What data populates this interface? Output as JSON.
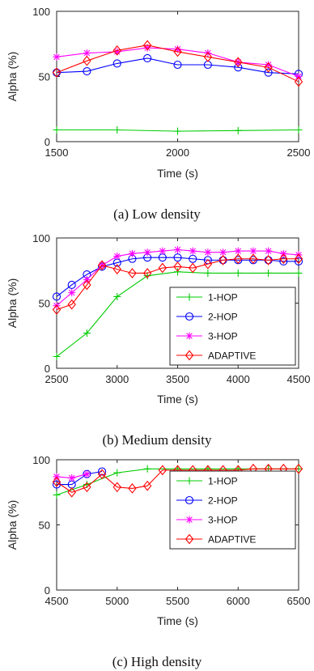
{
  "chart_data": [
    {
      "type": "line",
      "caption": "(a) Low density",
      "xlabel": "Time (s)",
      "ylabel": "Alpha (%)",
      "xlim": [
        1500,
        2500
      ],
      "ylim": [
        0,
        100
      ],
      "xticks": [
        1500,
        2000,
        2500
      ],
      "yticks": [
        0,
        50,
        100
      ],
      "legend": false,
      "series": [
        {
          "color": "#00cc00",
          "marker": "plus",
          "points": [
            [
              1500,
              9
            ],
            [
              1750,
              9
            ],
            [
              2000,
              8
            ],
            [
              2250,
              8.5
            ],
            [
              2500,
              9
            ]
          ]
        },
        {
          "color": "#0000ff",
          "marker": "circle",
          "points": [
            [
              1500,
              53
            ],
            [
              1625,
              54
            ],
            [
              1750,
              60
            ],
            [
              1875,
              64
            ],
            [
              2000,
              59
            ],
            [
              2125,
              59
            ],
            [
              2250,
              57
            ],
            [
              2375,
              53
            ],
            [
              2500,
              52
            ]
          ]
        },
        {
          "color": "#ff00ff",
          "marker": "star",
          "points": [
            [
              1500,
              65
            ],
            [
              1625,
              68
            ],
            [
              1750,
              69
            ],
            [
              1875,
              72
            ],
            [
              2000,
              71
            ],
            [
              2125,
              68
            ],
            [
              2250,
              61
            ],
            [
              2375,
              59
            ],
            [
              2500,
              50
            ]
          ]
        },
        {
          "color": "#ff0000",
          "marker": "diamond",
          "points": [
            [
              1500,
              53
            ],
            [
              1625,
              62
            ],
            [
              1750,
              70
            ],
            [
              1875,
              74
            ],
            [
              2000,
              69
            ],
            [
              2125,
              65
            ],
            [
              2250,
              61
            ],
            [
              2375,
              57
            ],
            [
              2500,
              46
            ]
          ]
        }
      ]
    },
    {
      "type": "line",
      "caption": "(b) Medium density",
      "xlabel": "Time (s)",
      "ylabel": "Alpha (%)",
      "xlim": [
        2500,
        4500
      ],
      "ylim": [
        0,
        100
      ],
      "xticks": [
        2500,
        3000,
        3500,
        4000,
        4500
      ],
      "yticks": [
        0,
        50,
        100
      ],
      "legend": true,
      "legend_position": "bottom-right",
      "series": [
        {
          "name": "1-HOP",
          "color": "#00cc00",
          "marker": "plus",
          "points": [
            [
              2500,
              9
            ],
            [
              2750,
              27
            ],
            [
              3000,
              55
            ],
            [
              3250,
              71
            ],
            [
              3500,
              74
            ],
            [
              3750,
              73
            ],
            [
              4000,
              73
            ],
            [
              4250,
              73
            ],
            [
              4500,
              73
            ]
          ]
        },
        {
          "name": "2-HOP",
          "color": "#0000ff",
          "marker": "circle",
          "points": [
            [
              2500,
              55
            ],
            [
              2625,
              64
            ],
            [
              2750,
              72
            ],
            [
              2875,
              78
            ],
            [
              3000,
              81
            ],
            [
              3125,
              84
            ],
            [
              3250,
              85
            ],
            [
              3375,
              85
            ],
            [
              3500,
              85
            ],
            [
              3625,
              84
            ],
            [
              3750,
              83
            ],
            [
              3875,
              83
            ],
            [
              4000,
              83
            ],
            [
              4125,
              83
            ],
            [
              4250,
              83
            ],
            [
              4375,
              82
            ],
            [
              4500,
              82
            ]
          ]
        },
        {
          "name": "3-HOP",
          "color": "#ff00ff",
          "marker": "star",
          "points": [
            [
              2500,
              48
            ],
            [
              2625,
              58
            ],
            [
              2750,
              68
            ],
            [
              2875,
              79
            ],
            [
              3000,
              86
            ],
            [
              3125,
              88
            ],
            [
              3250,
              89
            ],
            [
              3375,
              90
            ],
            [
              3500,
              91
            ],
            [
              3625,
              90
            ],
            [
              3750,
              89
            ],
            [
              3875,
              89
            ],
            [
              4000,
              90
            ],
            [
              4125,
              90
            ],
            [
              4250,
              90
            ],
            [
              4375,
              88
            ],
            [
              4500,
              87
            ]
          ]
        },
        {
          "name": "ADAPTIVE",
          "color": "#ff0000",
          "marker": "diamond",
          "points": [
            [
              2500,
              45
            ],
            [
              2625,
              49
            ],
            [
              2750,
              64
            ],
            [
              2875,
              79
            ],
            [
              3000,
              76
            ],
            [
              3125,
              73
            ],
            [
              3250,
              73
            ],
            [
              3375,
              77
            ],
            [
              3500,
              78
            ],
            [
              3625,
              77
            ],
            [
              3750,
              80
            ],
            [
              3875,
              83
            ],
            [
              4000,
              84
            ],
            [
              4125,
              84
            ],
            [
              4250,
              83
            ],
            [
              4375,
              84
            ],
            [
              4500,
              84
            ]
          ]
        }
      ]
    },
    {
      "type": "line",
      "caption": "(c) High density",
      "xlabel": "Time (s)",
      "ylabel": "Alpha (%)",
      "xlim": [
        4500,
        6500
      ],
      "ylim": [
        0,
        100
      ],
      "xticks": [
        4500,
        5000,
        5500,
        6000,
        6500
      ],
      "yticks": [
        0,
        50,
        100
      ],
      "legend": true,
      "legend_position": "center-right",
      "series": [
        {
          "name": "1-HOP",
          "color": "#00cc00",
          "marker": "plus",
          "points": [
            [
              4500,
              73
            ],
            [
              4750,
              81
            ],
            [
              5000,
              90
            ],
            [
              5250,
              93
            ],
            [
              5500,
              93
            ],
            [
              5750,
              93
            ],
            [
              6000,
              93
            ],
            [
              6250,
              93
            ],
            [
              6500,
              93
            ]
          ]
        },
        {
          "name": "2-HOP",
          "color": "#0000ff",
          "marker": "circle",
          "points": [
            [
              4500,
              81
            ],
            [
              4625,
              81
            ],
            [
              4750,
              89
            ],
            [
              4875,
              91
            ]
          ]
        },
        {
          "name": "3-HOP",
          "color": "#ff00ff",
          "marker": "star",
          "points": [
            [
              4500,
              87
            ],
            [
              4625,
              86
            ],
            [
              4750,
              89
            ]
          ]
        },
        {
          "name": "ADAPTIVE",
          "color": "#ff0000",
          "marker": "diamond",
          "points": [
            [
              4500,
              83
            ],
            [
              4625,
              75
            ],
            [
              4750,
              79
            ],
            [
              4875,
              89
            ],
            [
              5000,
              79
            ],
            [
              5125,
              78
            ],
            [
              5250,
              80
            ],
            [
              5375,
              92
            ],
            [
              5500,
              92
            ],
            [
              5625,
              92
            ],
            [
              5750,
              92
            ],
            [
              5875,
              92
            ],
            [
              6000,
              92
            ],
            [
              6125,
              93
            ],
            [
              6250,
              93
            ],
            [
              6375,
              93
            ],
            [
              6500,
              93
            ]
          ]
        }
      ]
    }
  ]
}
